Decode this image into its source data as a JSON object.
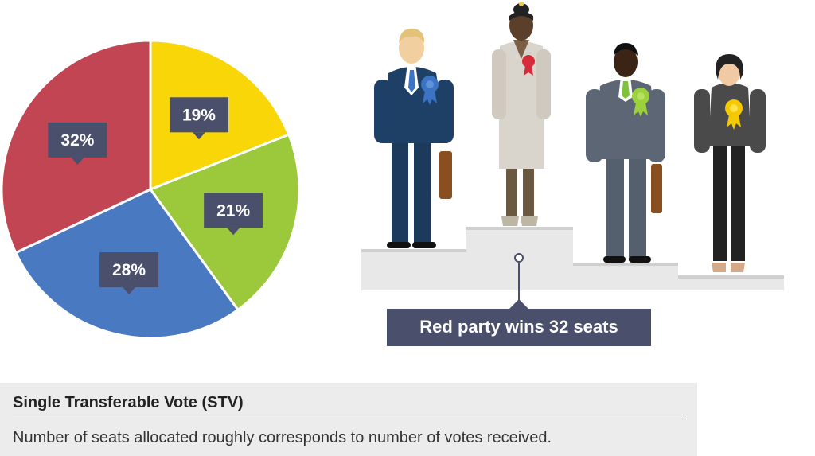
{
  "chart_data": {
    "type": "pie",
    "slices": [
      {
        "label": "19%",
        "value": 19,
        "color": "#f9d608"
      },
      {
        "label": "21%",
        "value": 21,
        "color": "#9bc93b"
      },
      {
        "label": "28%",
        "value": 28,
        "color": "#4979c1"
      },
      {
        "label": "32%",
        "value": 32,
        "color": "#c24553"
      }
    ],
    "start_angle_deg": 0,
    "direction": "clockwise"
  },
  "winner_label": "Red party wins 32 seats",
  "candidates": [
    {
      "party": "blue",
      "rosette_color": "#3a74c2",
      "position": "second"
    },
    {
      "party": "red",
      "rosette_color": "#d62b3a",
      "position": "first"
    },
    {
      "party": "green",
      "rosette_color": "#9bd13a",
      "position": "third"
    },
    {
      "party": "yellow",
      "rosette_color": "#f5c800",
      "position": "fourth"
    }
  ],
  "caption": {
    "title": "Single Transferable Vote (STV)",
    "text": "Number of seats allocated roughly corresponds to number of votes received."
  },
  "colors": {
    "label_box": "#4a4f6b",
    "podium": "#e6e6e6",
    "caption_bg": "#ececec"
  }
}
